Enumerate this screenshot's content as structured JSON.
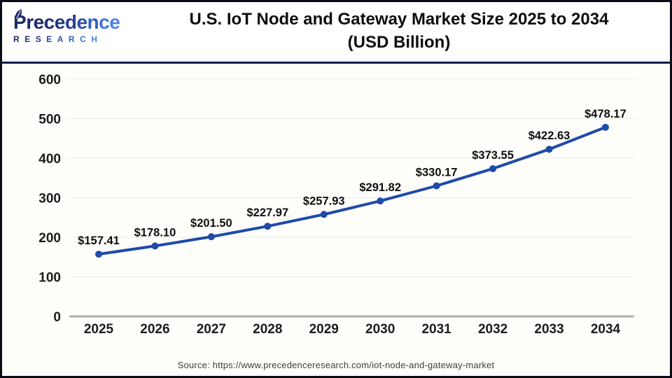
{
  "logo": {
    "name": "Precedence",
    "subtitle": "RESEARCH",
    "name_letter_colors": [
      "#1c2a67",
      "#1c2a67",
      "#1d2c6b",
      "#1e2f72",
      "#22377f",
      "#284090",
      "#2e4ea6",
      "#3560bb",
      "#3e71d2",
      "#4a82e4"
    ],
    "subtitle_letter_colors": [
      "#1c2a67",
      "#1f3076",
      "#233a85",
      "#284595",
      "#2e51a7",
      "#3560bb",
      "#3e71d2",
      "#4a82e4"
    ],
    "leaf_color": "#1d2a69"
  },
  "header": {
    "title_line1": "U.S. IoT Node and Gateway Market Size 2025 to 2034",
    "title_line2": "(USD Billion)"
  },
  "chart_data": {
    "type": "line",
    "title": "U.S. IoT Node and Gateway Market Size 2025 to 2034 (USD Billion)",
    "x": [
      "2025",
      "2026",
      "2027",
      "2028",
      "2029",
      "2030",
      "2031",
      "2032",
      "2033",
      "2034"
    ],
    "series": [
      {
        "name": "U.S. IoT Node and Gateway Market Size (USD Billion)",
        "values": [
          157.41,
          178.1,
          201.5,
          227.97,
          257.93,
          291.82,
          330.17,
          373.55,
          422.63,
          478.17
        ]
      }
    ],
    "data_labels": [
      "$157.41",
      "$178.10",
      "$201.50",
      "$227.97",
      "$257.93",
      "$291.82",
      "$330.17",
      "$373.55",
      "$422.63",
      "$478.17"
    ],
    "value_prefix": "$",
    "value_decimals": 2,
    "yticks": [
      0,
      100,
      200,
      300,
      400,
      500,
      600
    ],
    "ylim": [
      0,
      600
    ],
    "xlabel": "",
    "ylabel": "",
    "grid": "horizontal",
    "legend": "none",
    "line_color": "#1e4aa9",
    "marker_color": "#1e4aa9",
    "grid_color": "#e8e8e8",
    "axis_color": "#b0b0b0",
    "tick_color": "#1c1c1c",
    "label_color": "#0f0f0f"
  },
  "footer": {
    "source": "Source: https://www.precedenceresearch.com/iot-node-and-gateway-market"
  }
}
